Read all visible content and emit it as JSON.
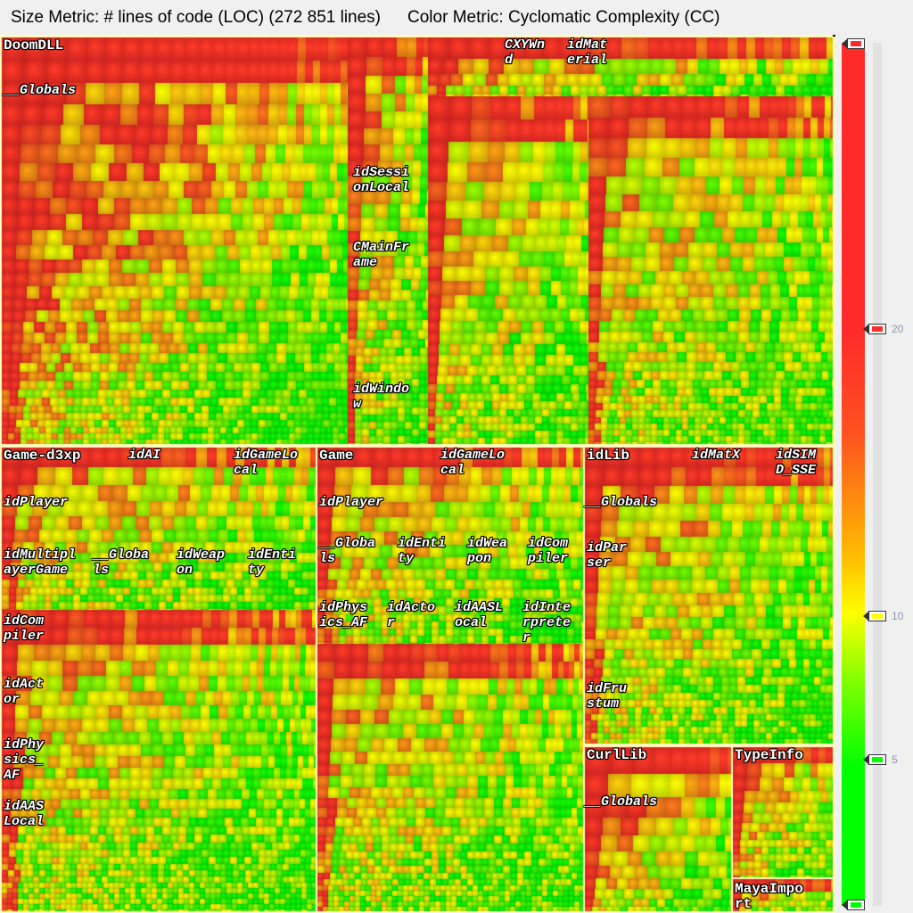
{
  "header": {
    "size_metric": "Size Metric: # lines of code (LOC) (272 851 lines)",
    "color_metric": "Color Metric: Cyclomatic Complexity (CC)"
  },
  "legend": {
    "ticks": [
      {
        "label": "20",
        "value": 20,
        "color": "#ff2a2a"
      },
      {
        "label": "10",
        "value": 10,
        "color": "#ffff00"
      },
      {
        "label": "5",
        "value": 5,
        "color": "#00ff00"
      }
    ],
    "low_color": "#00ff00",
    "mid_color": "#ffff00",
    "high_color": "#ff2a2a"
  },
  "labels": {
    "doomdll": "DoomDLL",
    "doomdll_globals": "__Globals",
    "cxywnd": "CXYWn\nd",
    "idmaterial": "idMat\nerial",
    "idsessionlocal": "idSessi\nonLocal",
    "cmainframe": "CMainFr\name",
    "idwindow": "idWindo\nw",
    "d3xp": "Game-d3xp",
    "d3xp_idai": "idAI",
    "d3xp_idgamelocal": "idGameLo\ncal",
    "d3xp_idplayer": "idPlayer",
    "d3xp_idmultiplayergame": "idMultipl\nayerGame",
    "d3xp_globals": "__Globa\nls",
    "d3xp_idweapon": "idWeap\non",
    "d3xp_identity": "idEnti\nty",
    "d3xp_idcompiler": "idCom\npiler",
    "d3xp_idactor": "idAct\nor",
    "d3xp_idphysics_af": "idPhy\nsics_\nAF",
    "d3xp_idaaslocal": "idAAS\nLocal",
    "game": "Game",
    "game_idgamelocal": "idGameLo\ncal",
    "game_idplayer": "idPlayer",
    "game_globals": "__Globa\nls",
    "game_identity": "idEnti\nty",
    "game_idweapon": "idWea\npon",
    "game_idcompiler": "idCom\npiler",
    "game_idphysics_af": "idPhys\nics_AF",
    "game_idactor": "idActo\nr",
    "game_idaaslocal": "idAASL\nocal",
    "game_idinterpreter": "idInte\nrprete\nr",
    "idlib": "idLib",
    "idlib_idmatx": "idMatX",
    "idlib_idsimd_sse": "idSIM\nD_SSE",
    "idlib_globals": "__Globals",
    "idlib_idparser": "idPar\nser",
    "idlib_idfrustum": "idFru\nstum",
    "curllib": "CurlLib",
    "curllib_globals": "__Globals",
    "typeinfo": "TypeInfo",
    "mayaimport": "MayaImpo\nrt"
  }
}
